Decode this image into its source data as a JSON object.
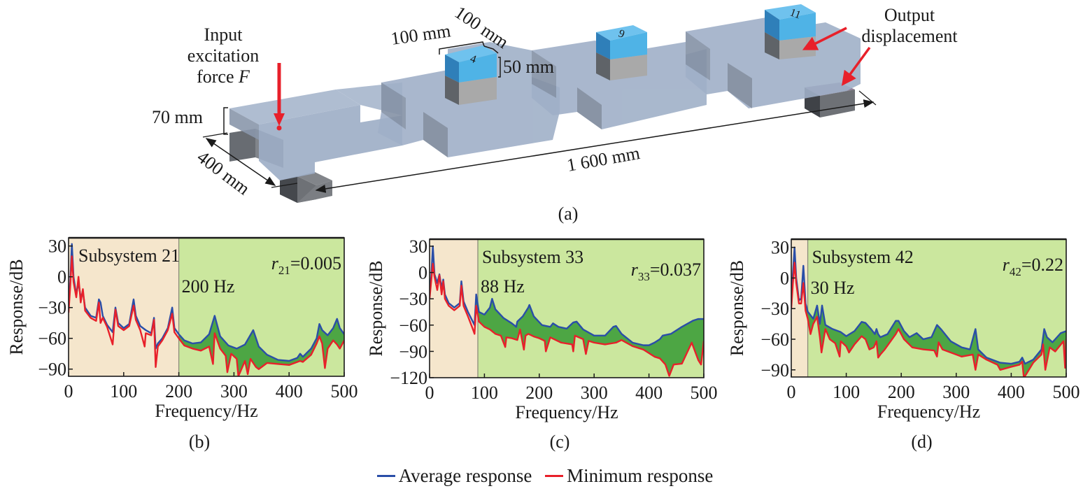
{
  "figure": {
    "panel_a": {
      "caption": "(a)",
      "input_label_lines": [
        "Input",
        "excitation",
        "force "
      ],
      "input_label_symbol": "F",
      "output_label_lines": [
        "Output",
        "displacement"
      ],
      "dim_height": "70 mm",
      "dim_width": "400 mm",
      "dim_length": "1 600 mm",
      "dim_cube_a": "100 mm",
      "dim_cube_b": "100 mm",
      "dim_cube_h": "50 mm",
      "cube_labels": [
        "4",
        "9",
        "11"
      ],
      "colors": {
        "plate": "#9fb0c9",
        "cube_top": "#4fb3e6",
        "cube_bottom": "#a9a9a9",
        "arrow": "#e8202a"
      }
    },
    "legend": [
      {
        "label": "Average response",
        "color": "#2a4ea8"
      },
      {
        "label": "Minimum response",
        "color": "#e8202a"
      }
    ]
  },
  "chart_data": [
    {
      "type": "line",
      "panel": "(b)",
      "title": "Subsystem 21",
      "cutoff_label": "200 Hz",
      "cutoff_hz": 200,
      "ratio_symbol": "r",
      "ratio_sub": "21",
      "ratio_value": "=0.005",
      "xlabel": "Frequency/Hz",
      "ylabel": "Response/dB",
      "xlim": [
        0,
        500
      ],
      "ylim": [
        -97,
        38
      ],
      "xticks": [
        0,
        100,
        200,
        300,
        400,
        500
      ],
      "yticks": [
        30,
        0,
        -30,
        -60,
        -90
      ],
      "regions": {
        "below_cutoff": "#f5e6cc",
        "above_cutoff": "#cbe79e"
      },
      "band_fill": "#3f9e3a",
      "series": [
        {
          "name": "Average response",
          "color": "#2a4ea8",
          "x": [
            0,
            3,
            6,
            9,
            14,
            18,
            22,
            26,
            30,
            40,
            50,
            55,
            58,
            62,
            70,
            80,
            85,
            90,
            100,
            110,
            118,
            122,
            130,
            140,
            150,
            155,
            158,
            162,
            170,
            180,
            188,
            192,
            200,
            210,
            225,
            240,
            255,
            265,
            275,
            290,
            305,
            320,
            335,
            345,
            360,
            380,
            400,
            415,
            420,
            425,
            440,
            450,
            455,
            460,
            470,
            480,
            487,
            492,
            500
          ],
          "y": [
            -20,
            -5,
            32,
            0,
            -18,
            -5,
            -20,
            -15,
            -30,
            -38,
            -40,
            -22,
            -25,
            -38,
            -47,
            -54,
            -30,
            -45,
            -50,
            -46,
            -22,
            -38,
            -48,
            -52,
            -55,
            -40,
            -70,
            -65,
            -60,
            -50,
            -30,
            -50,
            -56,
            -62,
            -65,
            -64,
            -56,
            -38,
            -58,
            -67,
            -70,
            -66,
            -52,
            -68,
            -76,
            -81,
            -82,
            -79,
            -75,
            -78,
            -70,
            -60,
            -46,
            -52,
            -57,
            -50,
            -41,
            -50,
            -56
          ]
        },
        {
          "name": "Minimum response",
          "color": "#e8202a",
          "x": [
            0,
            3,
            6,
            9,
            14,
            18,
            22,
            26,
            30,
            40,
            50,
            55,
            58,
            62,
            70,
            80,
            85,
            90,
            100,
            110,
            118,
            122,
            130,
            138,
            140,
            150,
            155,
            158,
            162,
            170,
            180,
            188,
            192,
            200,
            210,
            225,
            240,
            255,
            262,
            265,
            275,
            285,
            288,
            295,
            305,
            308,
            320,
            325,
            330,
            340,
            345,
            360,
            380,
            400,
            415,
            420,
            425,
            440,
            450,
            455,
            460,
            465,
            470,
            480,
            487,
            492,
            500
          ],
          "y": [
            -35,
            -10,
            20,
            -5,
            -20,
            0,
            -25,
            -12,
            -33,
            -40,
            -43,
            -25,
            -45,
            -40,
            -49,
            -66,
            -32,
            -48,
            -52,
            -48,
            -28,
            -42,
            -52,
            -68,
            -55,
            -57,
            -42,
            -88,
            -68,
            -62,
            -52,
            -36,
            -54,
            -60,
            -67,
            -70,
            -72,
            -68,
            -85,
            -55,
            -70,
            -77,
            -93,
            -75,
            -80,
            -97,
            -82,
            -95,
            -80,
            -88,
            -90,
            -84,
            -85,
            -86,
            -83,
            -82,
            -83,
            -76,
            -65,
            -58,
            -65,
            -89,
            -70,
            -62,
            -66,
            -70,
            -62
          ]
        }
      ]
    },
    {
      "type": "line",
      "panel": "(c)",
      "title": "Subsystem 33",
      "cutoff_label": "88 Hz",
      "cutoff_hz": 88,
      "ratio_symbol": "r",
      "ratio_sub": "33",
      "ratio_value": "=0.037",
      "xlabel": "Frequency/Hz",
      "ylabel": "Response/dB",
      "xlim": [
        0,
        500
      ],
      "ylim": [
        -120,
        38
      ],
      "xticks": [
        0,
        100,
        200,
        300,
        400,
        500
      ],
      "yticks": [
        30,
        0,
        -30,
        -60,
        -90,
        -120
      ],
      "regions": {
        "below_cutoff": "#f5e6cc",
        "above_cutoff": "#cbe79e"
      },
      "band_fill": "#3f9e3a",
      "series": [
        {
          "name": "Average response",
          "color": "#2a4ea8",
          "x": [
            0,
            3,
            6,
            9,
            14,
            18,
            22,
            25,
            28,
            35,
            45,
            55,
            58,
            62,
            70,
            78,
            82,
            85,
            90,
            100,
            110,
            114,
            120,
            135,
            150,
            158,
            160,
            170,
            180,
            182,
            190,
            205,
            220,
            225,
            235,
            250,
            262,
            268,
            280,
            300,
            320,
            335,
            340,
            350,
            370,
            390,
            400,
            410,
            420,
            425,
            440,
            460,
            480,
            490,
            500
          ],
          "y": [
            -20,
            -5,
            30,
            -2,
            -12,
            -2,
            -18,
            -8,
            -25,
            -35,
            -40,
            -35,
            -10,
            -33,
            -45,
            -55,
            -60,
            -25,
            -45,
            -48,
            -40,
            -30,
            -42,
            -52,
            -58,
            -62,
            -56,
            -50,
            -40,
            -37,
            -50,
            -60,
            -62,
            -58,
            -62,
            -64,
            -57,
            -56,
            -65,
            -72,
            -72,
            -62,
            -61,
            -70,
            -80,
            -83,
            -83,
            -80,
            -76,
            -72,
            -70,
            -62,
            -55,
            -53,
            -53
          ]
        },
        {
          "name": "Minimum response",
          "color": "#e8202a",
          "x": [
            0,
            3,
            6,
            9,
            14,
            18,
            22,
            25,
            28,
            35,
            45,
            55,
            58,
            62,
            70,
            78,
            82,
            85,
            90,
            100,
            110,
            120,
            130,
            138,
            140,
            150,
            160,
            165,
            172,
            175,
            180,
            190,
            200,
            210,
            212,
            220,
            240,
            260,
            262,
            265,
            280,
            285,
            290,
            300,
            320,
            340,
            350,
            370,
            390,
            400,
            410,
            420,
            430,
            437,
            445,
            460,
            478,
            490,
            495,
            500
          ],
          "y": [
            -30,
            -10,
            10,
            -5,
            -20,
            -3,
            -25,
            -10,
            -30,
            -38,
            -43,
            -38,
            -15,
            -38,
            -50,
            -63,
            -70,
            -38,
            -56,
            -62,
            -65,
            -70,
            -72,
            -85,
            -74,
            -75,
            -77,
            -65,
            -88,
            -72,
            -70,
            -73,
            -75,
            -78,
            -90,
            -74,
            -80,
            -82,
            -90,
            -72,
            -76,
            -93,
            -78,
            -80,
            -82,
            -80,
            -77,
            -84,
            -88,
            -92,
            -96,
            -98,
            -105,
            -118,
            -105,
            -104,
            -80,
            -100,
            -105,
            -78
          ]
        }
      ]
    },
    {
      "type": "line",
      "panel": "(d)",
      "title": "Subsystem 42",
      "cutoff_label": "30 Hz",
      "cutoff_hz": 30,
      "ratio_symbol": "r",
      "ratio_sub": "42",
      "ratio_value": "=0.22",
      "xlabel": "Frequency/Hz",
      "ylabel": "Response/dB",
      "xlim": [
        0,
        500
      ],
      "ylim": [
        -97,
        38
      ],
      "xticks": [
        0,
        100,
        200,
        300,
        400,
        500
      ],
      "yticks": [
        30,
        0,
        -30,
        -60,
        -90
      ],
      "regions": {
        "below_cutoff": "#f5e6cc",
        "above_cutoff": "#cbe79e"
      },
      "band_fill": "#3f9e3a",
      "series": [
        {
          "name": "Average response",
          "color": "#2a4ea8",
          "x": [
            0,
            3,
            6,
            9,
            14,
            18,
            22,
            26,
            30,
            40,
            47,
            52,
            56,
            62,
            75,
            90,
            100,
            115,
            128,
            135,
            145,
            152,
            155,
            158,
            162,
            175,
            190,
            195,
            205,
            215,
            228,
            240,
            255,
            265,
            272,
            290,
            310,
            325,
            335,
            340,
            355,
            380,
            400,
            415,
            420,
            425,
            440,
            455,
            460,
            465,
            475,
            490,
            500
          ],
          "y": [
            -15,
            5,
            30,
            0,
            -22,
            -20,
            12,
            -25,
            -33,
            -40,
            -27,
            -45,
            -27,
            -46,
            -50,
            -53,
            -57,
            -52,
            -43,
            -44,
            -50,
            -55,
            -50,
            -55,
            -58,
            -55,
            -42,
            -42,
            -52,
            -58,
            -54,
            -60,
            -58,
            -46,
            -50,
            -62,
            -68,
            -70,
            -50,
            -70,
            -78,
            -83,
            -84,
            -82,
            -78,
            -84,
            -80,
            -70,
            -50,
            -58,
            -63,
            -54,
            -52
          ]
        },
        {
          "name": "Minimum response",
          "color": "#e8202a",
          "x": [
            0,
            3,
            6,
            9,
            14,
            18,
            22,
            26,
            30,
            35,
            40,
            47,
            52,
            55,
            62,
            70,
            80,
            88,
            90,
            100,
            105,
            115,
            128,
            135,
            142,
            150,
            155,
            158,
            162,
            170,
            190,
            195,
            205,
            220,
            240,
            260,
            265,
            268,
            275,
            290,
            310,
            330,
            335,
            340,
            355,
            375,
            380,
            400,
            415,
            420,
            423,
            440,
            455,
            458,
            462,
            470,
            480,
            495,
            498,
            500
          ],
          "y": [
            -30,
            -5,
            15,
            -5,
            -25,
            -25,
            -5,
            -32,
            -40,
            -55,
            -45,
            -38,
            -58,
            -73,
            -50,
            -60,
            -64,
            -77,
            -62,
            -67,
            -73,
            -65,
            -57,
            -60,
            -70,
            -68,
            -62,
            -78,
            -75,
            -70,
            -55,
            -50,
            -60,
            -68,
            -70,
            -71,
            -77,
            -63,
            -70,
            -73,
            -77,
            -75,
            -90,
            -75,
            -80,
            -85,
            -90,
            -87,
            -85,
            -82,
            -98,
            -83,
            -75,
            -65,
            -90,
            -68,
            -72,
            -62,
            -88,
            -60
          ]
        }
      ]
    }
  ]
}
